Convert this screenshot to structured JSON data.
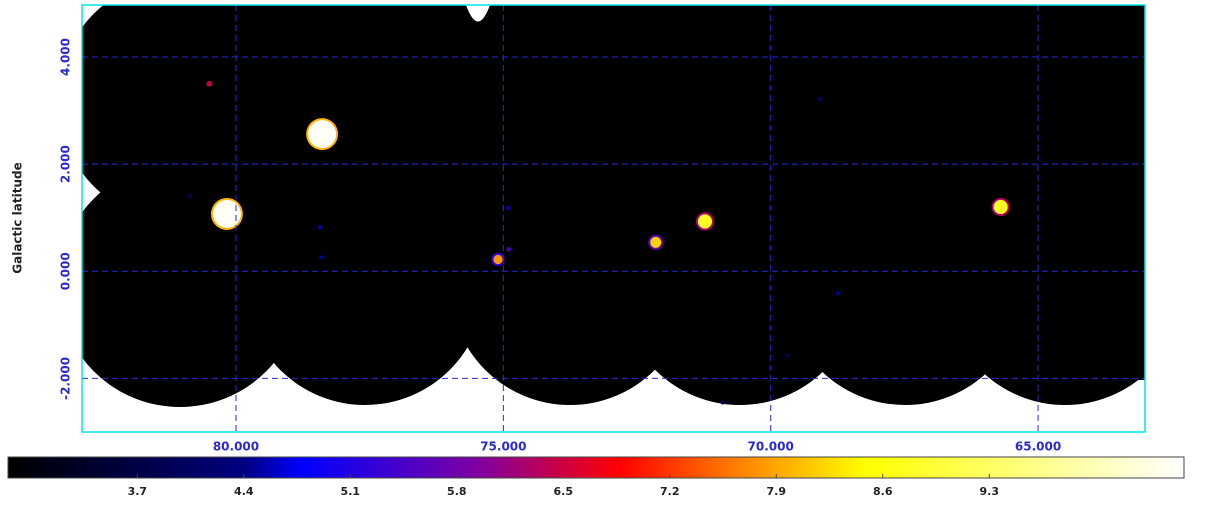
{
  "chart_data": {
    "type": "image",
    "y_label": "Galactic latitude",
    "xlim": [
      82.88,
      63.0
    ],
    "ylim": [
      -3.0,
      4.97
    ],
    "xticks": [
      {
        "value": 80,
        "label": "80.000"
      },
      {
        "value": 75,
        "label": "75.000"
      },
      {
        "value": 70,
        "label": "70.000"
      },
      {
        "value": 65,
        "label": "65.000"
      }
    ],
    "yticks": [
      {
        "value": -2,
        "label": "-2.000"
      },
      {
        "value": 0,
        "label": "0.000"
      },
      {
        "value": 2,
        "label": "2.000"
      },
      {
        "value": 4,
        "label": "4.000"
      }
    ],
    "grid": true,
    "sources": {
      "x": [
        80.17,
        78.39,
        80.5,
        75.1,
        74.9,
        72.15,
        71.23,
        65.7,
        74.92,
        78.43,
        78.41,
        68.75,
        69.08,
        80.86,
        69.7,
        70.9
      ],
      "y": [
        1.07,
        2.56,
        3.5,
        0.22,
        0.41,
        0.54,
        0.93,
        1.2,
        1.18,
        0.82,
        0.26,
        -0.41,
        3.21,
        1.4,
        -1.57,
        -2.45
      ],
      "values": [
        10.5,
        10.5,
        6.5,
        7.8,
        5.5,
        8.2,
        8.8,
        8.8,
        4.6,
        4.6,
        4.5,
        4.5,
        4.2,
        4.2,
        4.0,
        4.2
      ]
    },
    "colorbar": {
      "lim": [
        2.85,
        10.58
      ],
      "ticks": [
        3.7,
        4.4,
        5.1,
        5.8,
        6.5,
        7.2,
        7.9,
        8.6,
        9.3
      ]
    }
  }
}
